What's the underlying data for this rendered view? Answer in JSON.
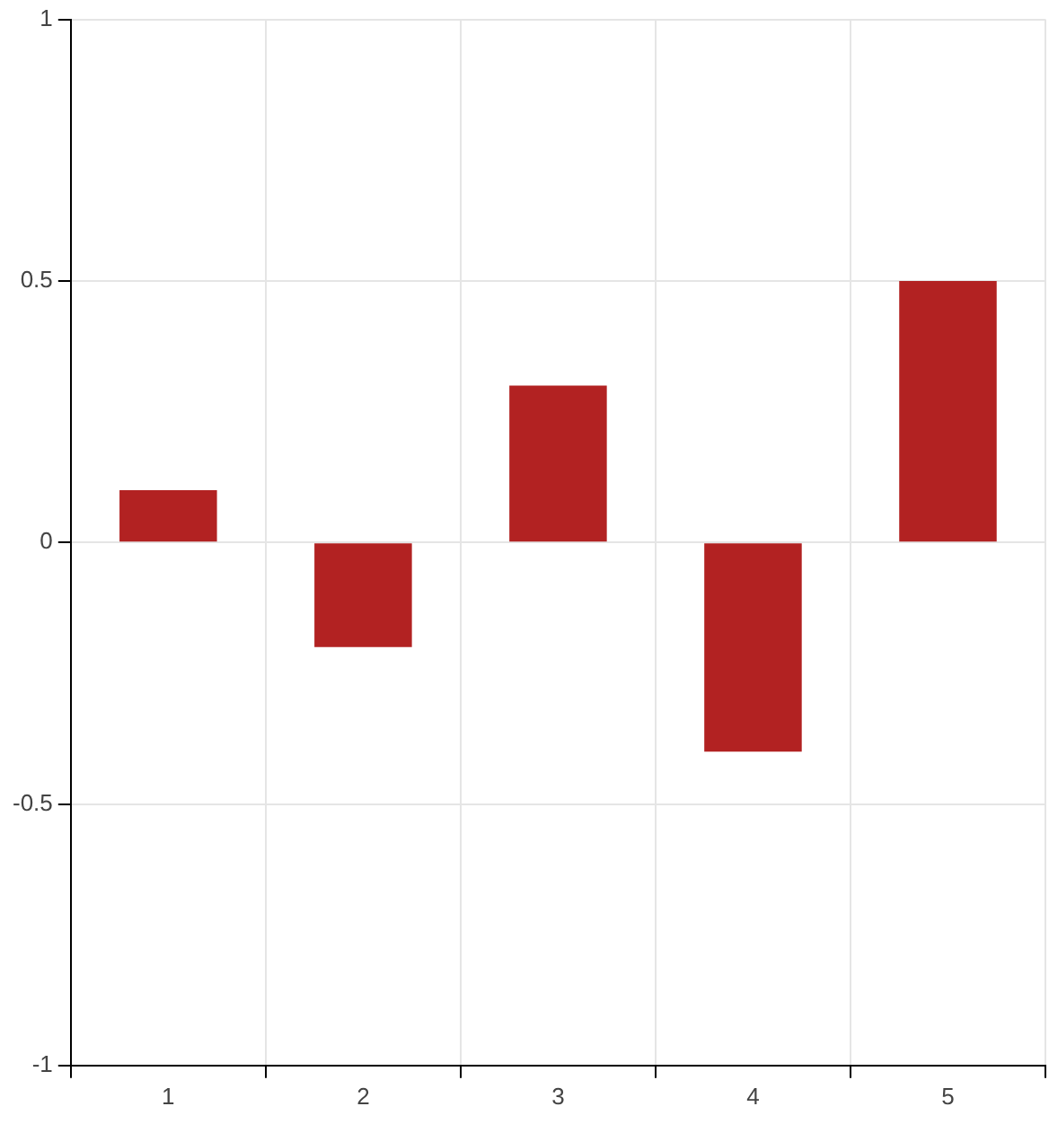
{
  "chart_data": {
    "type": "bar",
    "x": [
      1,
      2,
      3,
      4,
      5
    ],
    "values": [
      0.1,
      -0.2,
      0.3,
      -0.4,
      0.5
    ],
    "color": "#b22222",
    "xlim": [
      0.5,
      5.5
    ],
    "xticks": [
      1,
      2,
      3,
      4,
      5
    ],
    "ylim": [
      -1,
      1
    ],
    "yticks": [
      -1,
      -0.5,
      0,
      0.5,
      1
    ],
    "grid": true
  }
}
